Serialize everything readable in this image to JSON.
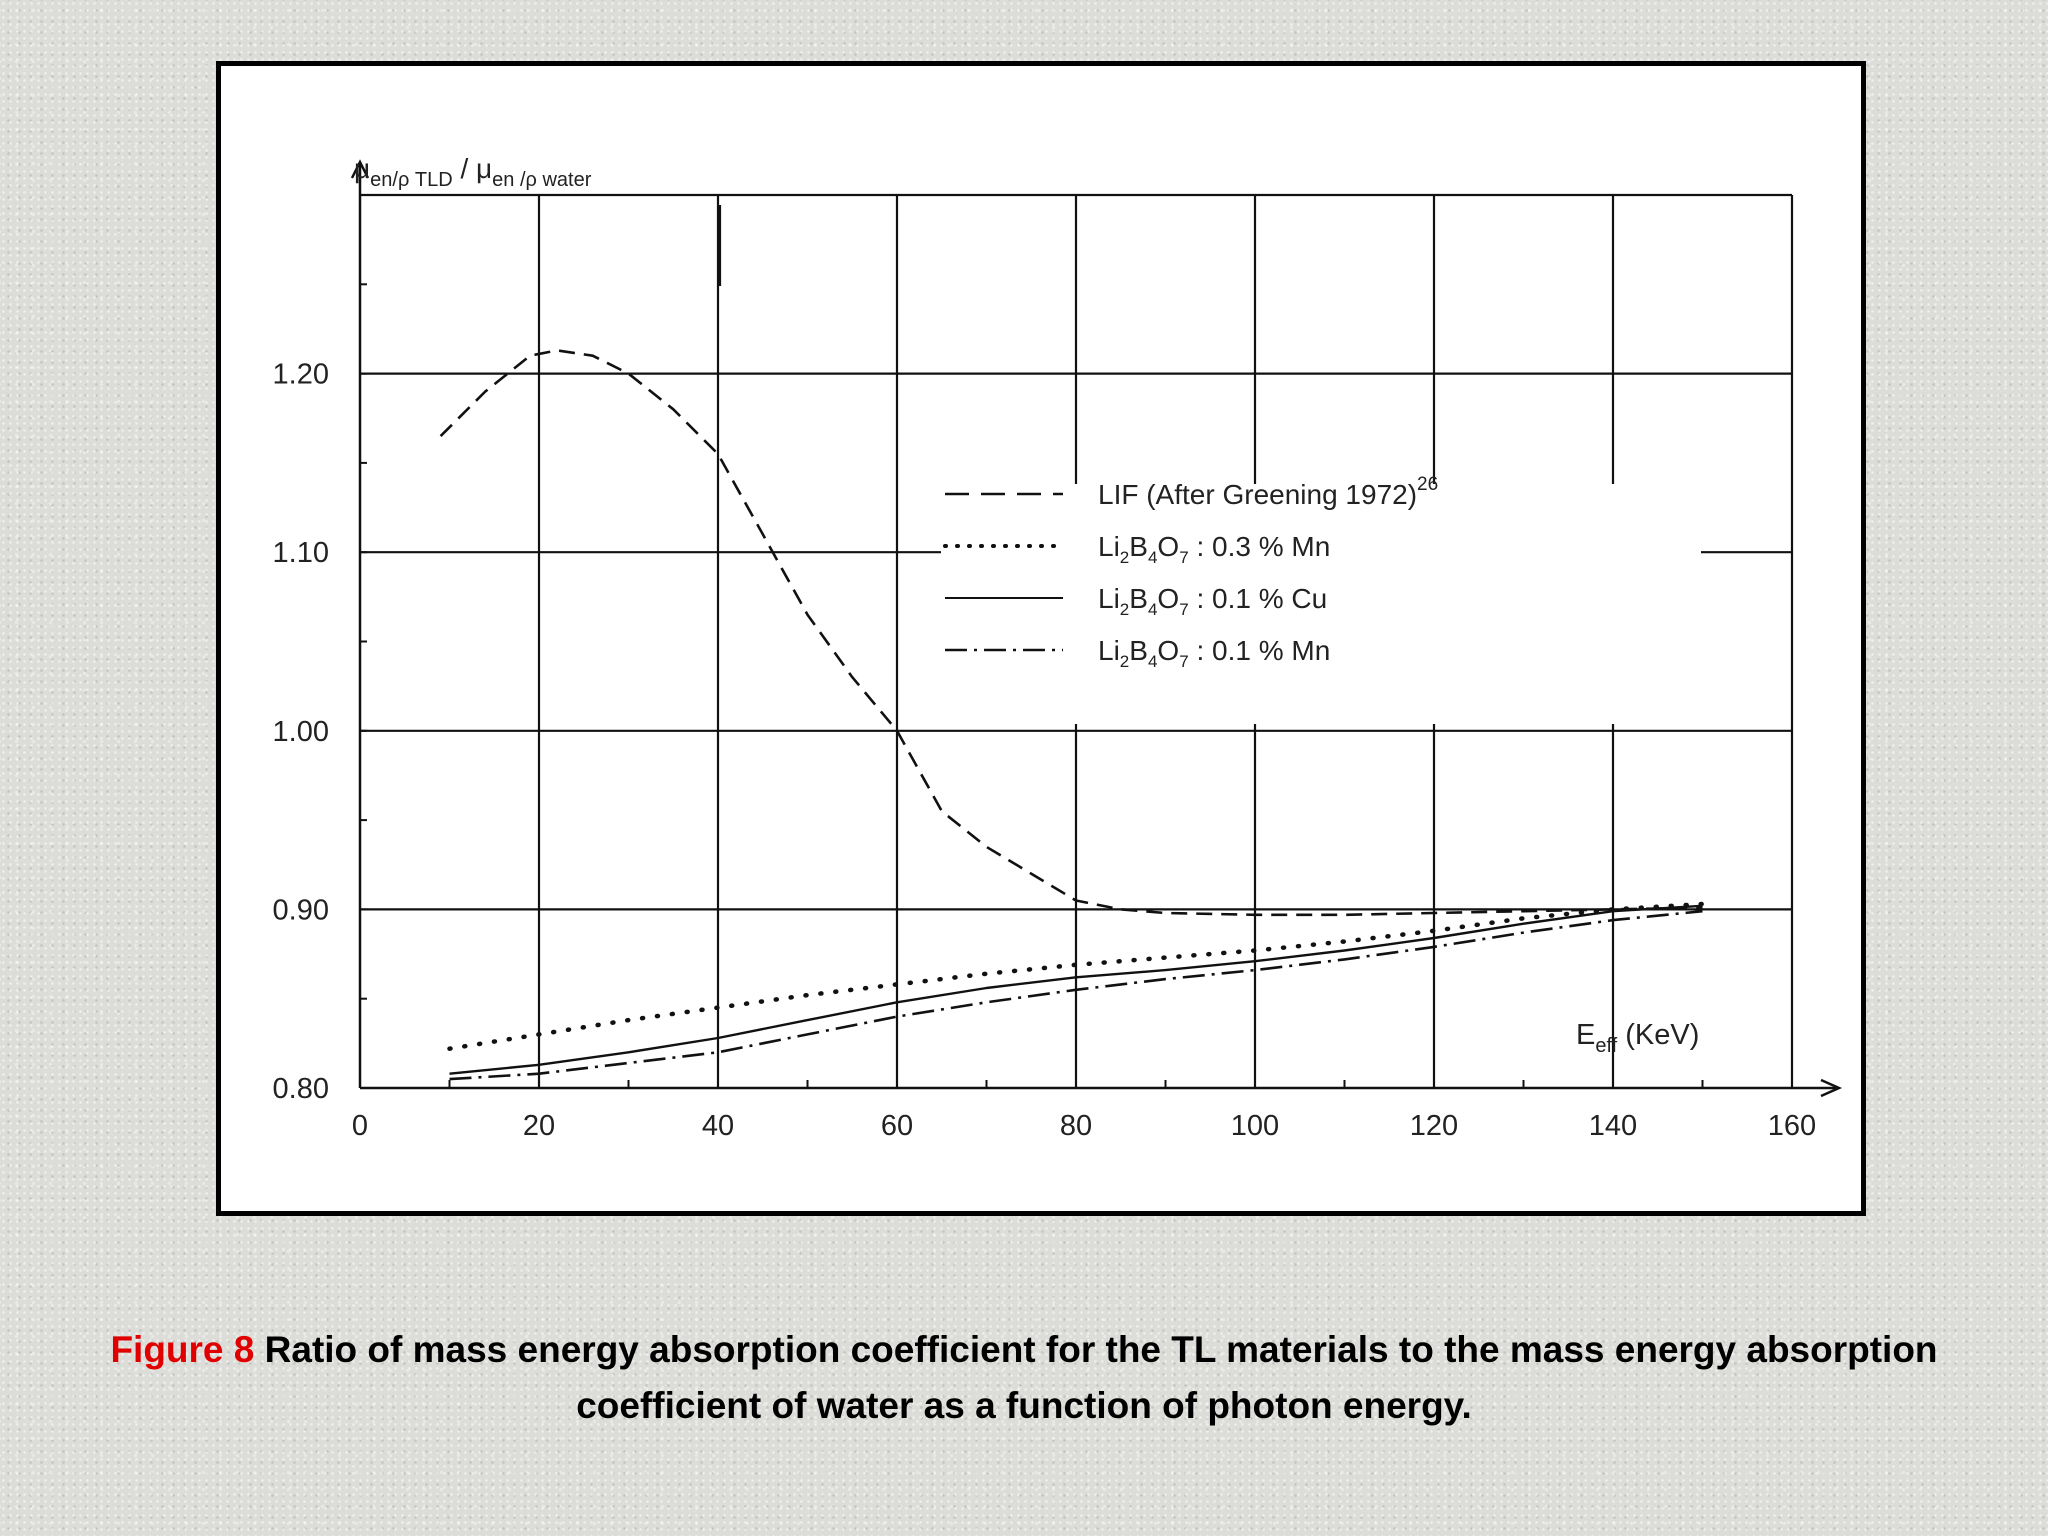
{
  "caption": {
    "figure_label": "Figure 8",
    "text": "Ratio of mass energy absorption coefficient for the TL materials to the mass energy absorption coefficient of water as a function of photon energy."
  },
  "chart_data": {
    "type": "line",
    "title": "",
    "ylabel": {
      "mu": "μ",
      "sub1": "en/ρ TLD",
      "slash": " / ",
      "mu2": "μ",
      "sub2": "en /ρ water"
    },
    "xlabel": {
      "main": "E",
      "sub": "eff",
      "unit": " (KeV)"
    },
    "xlim": [
      0,
      160
    ],
    "ylim": [
      0.8,
      1.3
    ],
    "x_ticks": [
      0,
      20,
      40,
      60,
      80,
      100,
      120,
      140,
      160
    ],
    "x_tick_labels": [
      "0",
      "20",
      "40",
      "60",
      "80",
      "100",
      "120",
      "140",
      "160"
    ],
    "y_ticks": [
      0.8,
      0.9,
      1.0,
      1.1,
      1.2
    ],
    "y_tick_labels": [
      "0.80",
      "0.90",
      "1.00",
      "1.10",
      "1.20"
    ],
    "series": [
      {
        "name": "LIF (After Greening 1972)",
        "legend": {
          "text": "LIF (After Greening 1972)",
          "sup": "26"
        },
        "style": "dashed",
        "x": [
          9,
          14,
          19,
          22,
          26,
          30,
          35,
          40,
          45,
          50,
          55,
          60,
          65,
          70,
          75,
          80,
          85,
          90,
          100,
          110,
          120,
          130,
          140,
          150
        ],
        "y": [
          1.165,
          1.19,
          1.21,
          1.213,
          1.21,
          1.2,
          1.18,
          1.155,
          1.11,
          1.065,
          1.03,
          1.0,
          0.955,
          0.935,
          0.92,
          0.905,
          0.9,
          0.898,
          0.897,
          0.897,
          0.898,
          0.899,
          0.9,
          0.901
        ]
      },
      {
        "name": "Li2B4O7 : 0.3 % Mn",
        "legend": {
          "pre": "Li",
          "s1": "2",
          "mid": "B",
          "s2": "4",
          "post": "O",
          "s3": "7",
          "tail": " : 0.3 % Mn"
        },
        "style": "dotted",
        "x": [
          10,
          20,
          30,
          40,
          50,
          60,
          70,
          80,
          90,
          100,
          110,
          120,
          130,
          140,
          150
        ],
        "y": [
          0.822,
          0.83,
          0.838,
          0.845,
          0.852,
          0.858,
          0.864,
          0.869,
          0.873,
          0.877,
          0.882,
          0.888,
          0.895,
          0.9,
          0.903
        ]
      },
      {
        "name": "Li2B4O7 : 0.1 % Cu",
        "legend": {
          "pre": "Li",
          "s1": "2",
          "mid": "B",
          "s2": "4",
          "post": "O",
          "s3": "7",
          "tail": " : 0.1 % Cu"
        },
        "style": "solid",
        "x": [
          10,
          20,
          30,
          40,
          50,
          60,
          70,
          80,
          90,
          100,
          110,
          120,
          130,
          140,
          150
        ],
        "y": [
          0.808,
          0.813,
          0.82,
          0.828,
          0.838,
          0.848,
          0.856,
          0.862,
          0.866,
          0.871,
          0.877,
          0.884,
          0.892,
          0.899,
          0.902
        ]
      },
      {
        "name": "Li2B4O7 : 0.1 % Mn",
        "legend": {
          "pre": "Li",
          "s1": "2",
          "mid": "B",
          "s2": "4",
          "post": "O",
          "s3": "7",
          "tail": " : 0.1 % Mn"
        },
        "style": "dashdot",
        "x": [
          10,
          20,
          30,
          40,
          50,
          60,
          70,
          80,
          90,
          100,
          110,
          120,
          130,
          140,
          150
        ],
        "y": [
          0.805,
          0.808,
          0.814,
          0.82,
          0.83,
          0.84,
          0.848,
          0.855,
          0.861,
          0.866,
          0.872,
          0.879,
          0.887,
          0.894,
          0.899
        ]
      }
    ],
    "grid": true,
    "legend_position": "upper-right inside plot"
  }
}
